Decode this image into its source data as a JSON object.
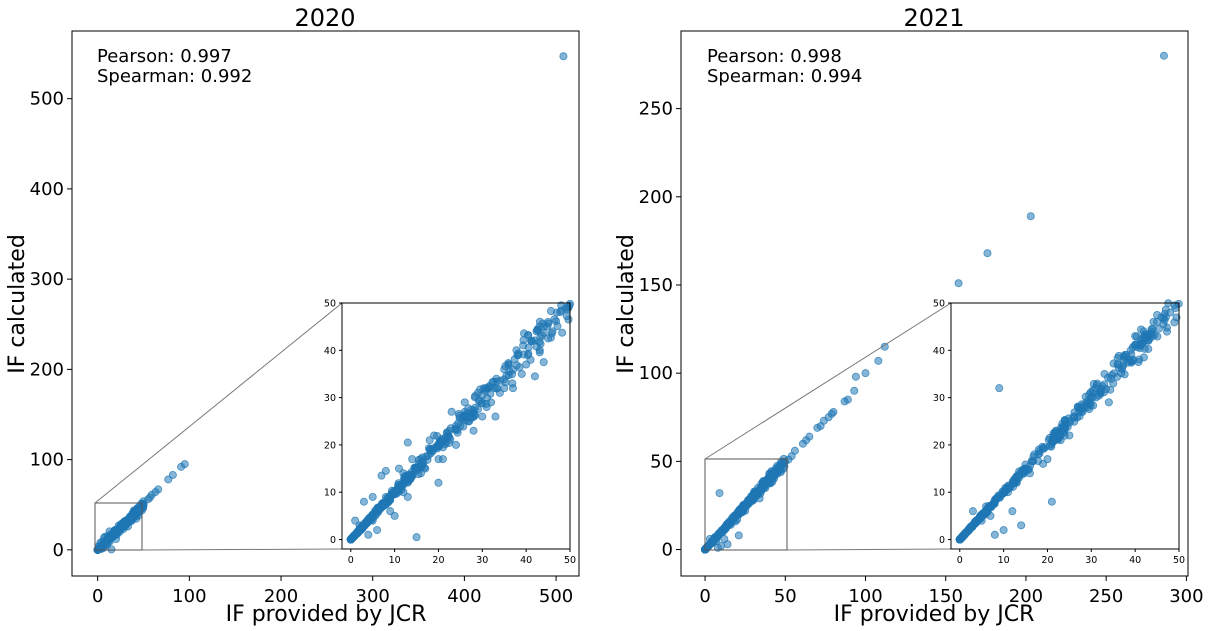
{
  "chart_data": [
    {
      "type": "scatter",
      "title": "2020",
      "xlabel": "IF provided by JCR",
      "ylabel": "IF calculated",
      "xlim": [
        -28,
        525
      ],
      "ylim": [
        -29,
        575
      ],
      "xticks": [
        0,
        100,
        200,
        300,
        400,
        500
      ],
      "yticks": [
        0,
        100,
        200,
        300,
        400,
        500
      ],
      "annotations": [
        "Pearson: 0.997",
        "Spearman: 0.992"
      ],
      "color": "#1f77b4",
      "inset": {
        "xlim": [
          -2,
          50
        ],
        "ylim": [
          -2,
          50
        ],
        "xticks": [
          0,
          10,
          20,
          30,
          40,
          50
        ],
        "yticks": [
          0,
          10,
          20,
          30,
          40,
          50
        ]
      },
      "series": [
        {
          "outliers": [
            [
              508,
              547
            ],
            [
              95,
              95
            ],
            [
              91,
              92
            ],
            [
              82,
              83
            ],
            [
              77,
              78
            ],
            [
              66,
              67
            ],
            [
              63,
              64
            ],
            [
              59,
              61
            ],
            [
              57,
              58
            ],
            [
              55,
              56
            ],
            [
              49,
              50.5
            ],
            [
              48,
              49.5
            ],
            [
              47,
              48
            ],
            [
              45,
              46
            ],
            [
              44,
              45
            ],
            [
              43,
              45
            ],
            [
              44,
              37.5
            ],
            [
              45,
              42.5
            ],
            [
              40,
              37
            ],
            [
              38,
              39
            ],
            [
              36,
              37
            ],
            [
              42,
              34.5
            ],
            [
              35,
              32
            ],
            [
              30,
              30.5
            ],
            [
              29,
              31
            ],
            [
              26,
              27
            ],
            [
              25,
              24
            ],
            [
              22,
              22.5
            ],
            [
              23,
              27
            ],
            [
              18,
              19
            ],
            [
              20,
              17
            ],
            [
              13,
              20.5
            ],
            [
              15,
              0.5
            ],
            [
              18,
              21
            ],
            [
              20,
              12
            ],
            [
              12,
              10
            ],
            [
              8,
              14.5
            ],
            [
              7,
              13.5
            ],
            [
              5,
              9
            ],
            [
              11,
              15
            ],
            [
              10,
              5
            ],
            [
              3,
              8
            ],
            [
              4,
              1
            ],
            [
              6,
              2
            ],
            [
              9,
              6
            ],
            [
              14,
              17
            ],
            [
              16,
              14
            ],
            [
              21,
              17
            ],
            [
              24,
              20
            ],
            [
              27,
              25
            ],
            [
              32,
              29
            ],
            [
              33,
              26
            ],
            [
              37,
              32
            ],
            [
              39,
              35
            ],
            [
              41,
              38
            ],
            [
              46,
              44
            ],
            [
              28,
              23
            ],
            [
              31,
              28
            ],
            [
              34,
              31
            ],
            [
              19,
              22
            ],
            [
              17,
              15
            ],
            [
              2,
              3
            ],
            [
              1,
              4
            ],
            [
              13,
              9
            ],
            [
              11,
              11
            ],
            [
              26,
              29
            ],
            [
              30,
              26
            ],
            [
              35,
              36
            ],
            [
              12,
              14
            ],
            [
              8,
              9
            ],
            [
              5,
              4
            ]
          ],
          "trend": {
            "x_max": 50,
            "count": 460,
            "spread": 0.09
          }
        }
      ]
    },
    {
      "type": "scatter",
      "title": "2021",
      "xlabel": "IF provided by JCR",
      "ylabel": "IF calculated",
      "xlim": [
        -15,
        301
      ],
      "ylim": [
        -15,
        294
      ],
      "xticks": [
        0,
        50,
        100,
        150,
        200,
        250,
        300
      ],
      "yticks": [
        0,
        50,
        100,
        150,
        200,
        250
      ],
      "annotations": [
        "Pearson: 0.998",
        "Spearman: 0.994"
      ],
      "color": "#1f77b4",
      "inset": {
        "xlim": [
          -2,
          50
        ],
        "ylim": [
          -2,
          50
        ],
        "xticks": [
          0,
          10,
          20,
          30,
          40,
          50
        ],
        "yticks": [
          0,
          10,
          20,
          30,
          40,
          50
        ]
      },
      "series": [
        {
          "outliers": [
            [
              286,
              280
            ],
            [
              203,
              189
            ],
            [
              176,
              168
            ],
            [
              158,
              151
            ],
            [
              112,
              115
            ],
            [
              108,
              107
            ],
            [
              100,
              100
            ],
            [
              94,
              98
            ],
            [
              93,
              90
            ],
            [
              89,
              85
            ],
            [
              87,
              84
            ],
            [
              80,
              78
            ],
            [
              79,
              77
            ],
            [
              77,
              75
            ],
            [
              74,
              73
            ],
            [
              72,
              70
            ],
            [
              70,
              69
            ],
            [
              65,
              64
            ],
            [
              63,
              62
            ],
            [
              61,
              60
            ],
            [
              56,
              56
            ],
            [
              54,
              53
            ],
            [
              52,
              51
            ],
            [
              49,
              49.5
            ],
            [
              48,
              48
            ],
            [
              47,
              47
            ],
            [
              45,
              46
            ],
            [
              44,
              44.5
            ],
            [
              43,
              42
            ],
            [
              40,
              43
            ],
            [
              38,
              39
            ],
            [
              36,
              37
            ],
            [
              42,
              38.5
            ],
            [
              34,
              29
            ],
            [
              30,
              30
            ],
            [
              27,
              28
            ],
            [
              24,
              25
            ],
            [
              20,
              17
            ],
            [
              21,
              8
            ],
            [
              9,
              32
            ],
            [
              16,
              14
            ],
            [
              13,
              12
            ],
            [
              12,
              6
            ],
            [
              10,
              2
            ],
            [
              14,
              3
            ],
            [
              8,
              1
            ],
            [
              5,
              4
            ],
            [
              3,
              6
            ],
            [
              18,
              19
            ],
            [
              22,
              23
            ],
            [
              25,
              22
            ],
            [
              28,
              27
            ],
            [
              32,
              31
            ],
            [
              33,
              35
            ],
            [
              35,
              33
            ],
            [
              37,
              36
            ],
            [
              39,
              40
            ],
            [
              41,
              41
            ],
            [
              46,
              47
            ],
            [
              11,
              10
            ],
            [
              15,
              15
            ],
            [
              19,
              16
            ],
            [
              23,
              21
            ],
            [
              26,
              26
            ],
            [
              29,
              29
            ],
            [
              31,
              32
            ],
            [
              6,
              7
            ],
            [
              7,
              5
            ],
            [
              17,
              18
            ]
          ],
          "trend": {
            "x_max": 50,
            "count": 480,
            "spread": 0.07
          }
        }
      ]
    }
  ]
}
